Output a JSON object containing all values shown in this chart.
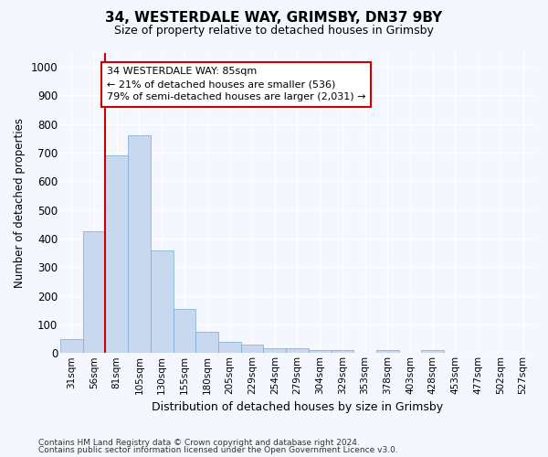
{
  "title1": "34, WESTERDALE WAY, GRIMSBY, DN37 9BY",
  "title2": "Size of property relative to detached houses in Grimsby",
  "xlabel": "Distribution of detached houses by size in Grimsby",
  "ylabel": "Number of detached properties",
  "bar_color": "#c8d8ee",
  "bar_edge_color": "#7aa8d0",
  "categories": [
    "31sqm",
    "56sqm",
    "81sqm",
    "105sqm",
    "130sqm",
    "155sqm",
    "180sqm",
    "205sqm",
    "229sqm",
    "254sqm",
    "279sqm",
    "304sqm",
    "329sqm",
    "353sqm",
    "378sqm",
    "403sqm",
    "428sqm",
    "453sqm",
    "477sqm",
    "502sqm",
    "527sqm"
  ],
  "values": [
    50,
    425,
    690,
    760,
    360,
    155,
    75,
    40,
    30,
    18,
    18,
    10,
    10,
    0,
    10,
    0,
    10,
    0,
    0,
    0,
    0
  ],
  "ylim": [
    0,
    1050
  ],
  "yticks": [
    0,
    100,
    200,
    300,
    400,
    500,
    600,
    700,
    800,
    900,
    1000
  ],
  "vline_x": 1.5,
  "vline_color": "#cc0000",
  "annotation_line1": "34 WESTERDALE WAY: 85sqm",
  "annotation_line2": "← 21% of detached houses are smaller (536)",
  "annotation_line3": "79% of semi-detached houses are larger (2,031) →",
  "annotation_box_facecolor": "#ffffff",
  "annotation_box_edgecolor": "#cc0000",
  "footer1": "Contains HM Land Registry data © Crown copyright and database right 2024.",
  "footer2": "Contains public sector information licensed under the Open Government Licence v3.0.",
  "fig_facecolor": "#f4f7fe",
  "axes_facecolor": "#f4f7fe",
  "grid_color": "#ffffff"
}
